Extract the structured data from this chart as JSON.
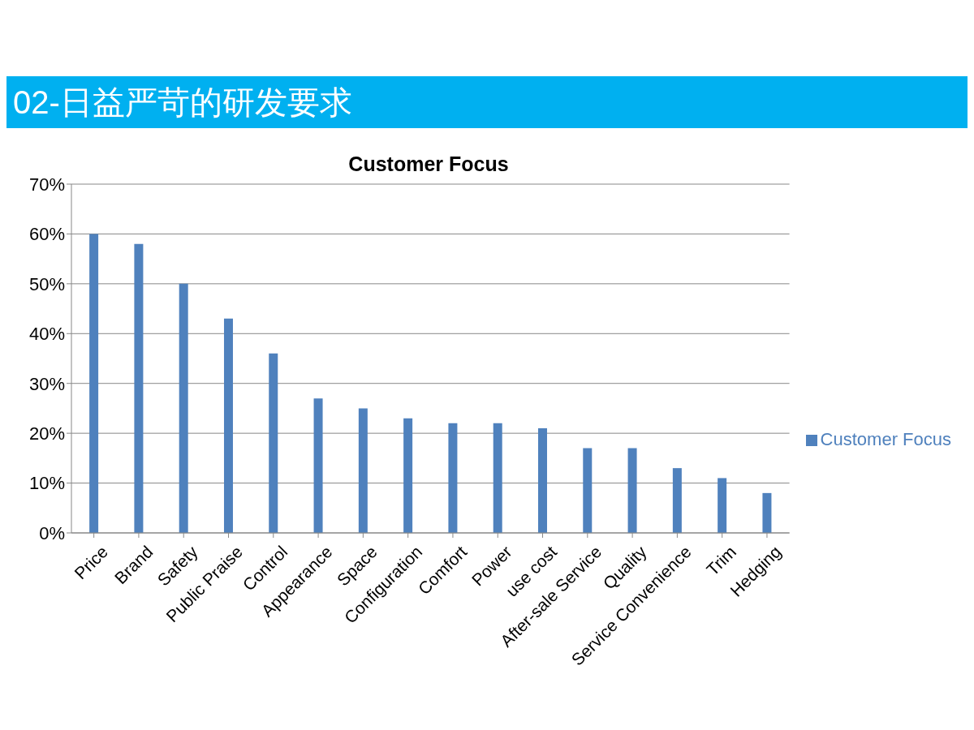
{
  "chart_data": {
    "type": "bar",
    "title": "02-日益严苛的研发要求",
    "subtitle": "Customer Focus",
    "categories": [
      "Price",
      "Brand",
      "Safety",
      "Public Praise",
      "Control",
      "Appearance",
      "Space",
      "Configuration",
      "Comfort",
      "Power",
      "use cost",
      "After-sale Service",
      "Quality",
      "Service Convenience",
      "Trim",
      "Hedging"
    ],
    "series": [
      {
        "name": "Customer Focus",
        "color": "#4f81bd",
        "values": [
          60,
          58,
          50,
          43,
          36,
          27,
          25,
          23,
          22,
          22,
          21,
          17,
          17,
          13,
          11,
          8
        ]
      }
    ],
    "ylim": [
      0,
      70
    ],
    "yticks": [
      {
        "value": 0,
        "label": "0%"
      },
      {
        "value": 10,
        "label": "10%"
      },
      {
        "value": 20,
        "label": "20%"
      },
      {
        "value": 30,
        "label": "30%"
      },
      {
        "value": 40,
        "label": "40%"
      },
      {
        "value": 50,
        "label": "50%"
      },
      {
        "value": 60,
        "label": "60%"
      },
      {
        "value": 70,
        "label": "70%"
      }
    ],
    "grid": "y",
    "legend": "right"
  }
}
